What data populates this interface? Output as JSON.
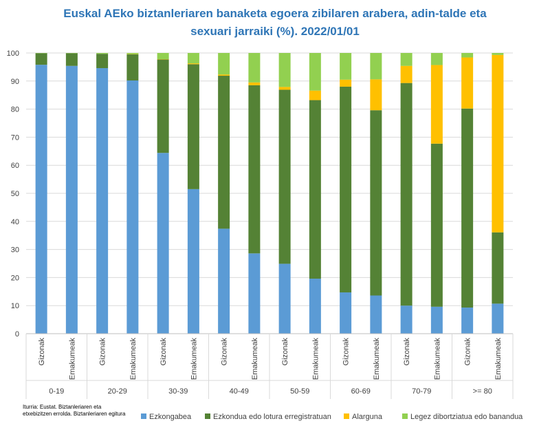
{
  "title_line1": "Euskal AEko biztanleriaren banaketa egoera zibilaren arabera, adin-talde eta",
  "title_line2": "sexuari jarraiki (%). 2022/01/01",
  "source": "Iturria: Eustat. Biztanleriaren eta etxebizitzen errolda. Biztanleriaren egitura",
  "chart_data": {
    "type": "bar",
    "stacked": true,
    "title": "Euskal AEko biztanleriaren banaketa egoera zibilaren arabera, adin-talde eta sexuari jarraiki (%). 2022/01/01",
    "groups": [
      "0-19",
      "20-29",
      "30-39",
      "40-49",
      "50-59",
      "60-69",
      "70-79",
      ">= 80"
    ],
    "sexes": [
      "Gizonak",
      "Emakumeak"
    ],
    "ylim": [
      0,
      100
    ],
    "yticks": [
      0,
      10,
      20,
      30,
      40,
      50,
      60,
      70,
      80,
      90,
      100
    ],
    "grid": true,
    "legend_position": "bottom",
    "series": [
      {
        "name": "Ezkongabea",
        "color": "#5b9bd5",
        "values": [
          95.8,
          95.4,
          94.6,
          90.2,
          64.4,
          51.5,
          37.4,
          28.6,
          24.9,
          19.6,
          14.7,
          13.6,
          10.0,
          9.6,
          9.3,
          10.7
        ]
      },
      {
        "name": "Ezkondua edo lotura erregistratuan",
        "color": "#548235",
        "values": [
          4.1,
          4.5,
          5.1,
          9.3,
          33.3,
          44.5,
          54.5,
          59.9,
          62.0,
          63.6,
          73.3,
          66.0,
          79.3,
          58.1,
          70.9,
          25.4
        ]
      },
      {
        "name": "Alarguna",
        "color": "#ffc000",
        "values": [
          0.0,
          0.0,
          0.0,
          0.1,
          0.1,
          0.3,
          0.4,
          1.0,
          1.0,
          3.4,
          2.5,
          11.0,
          6.1,
          28.0,
          18.2,
          63.2
        ]
      },
      {
        "name": "Legez dibortziatua edo banandua",
        "color": "#92d050",
        "values": [
          0.1,
          0.1,
          0.3,
          0.4,
          2.2,
          3.7,
          7.7,
          10.5,
          12.1,
          13.4,
          9.5,
          9.4,
          4.6,
          4.3,
          1.6,
          0.7
        ]
      }
    ]
  }
}
